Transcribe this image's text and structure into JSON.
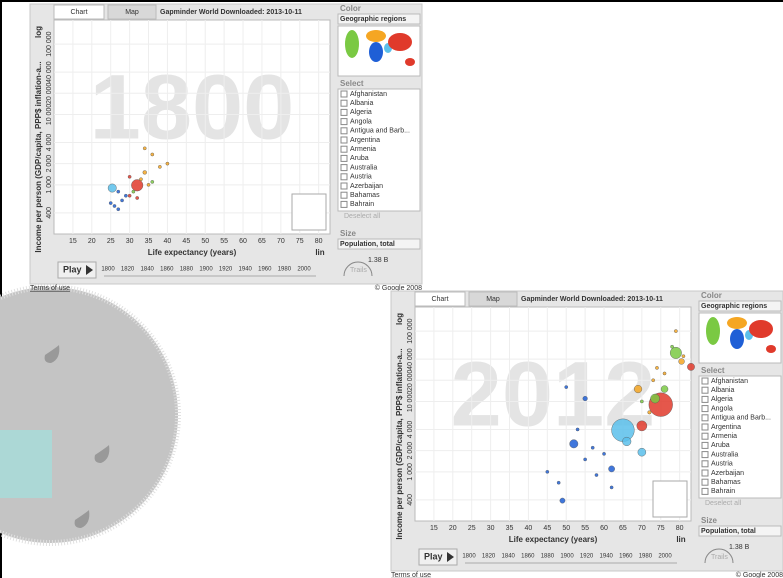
{
  "ui": {
    "tabs": [
      "Chart",
      "Map"
    ],
    "title": "Gapminder World Downloaded: 2013-10-11",
    "color_label": "Color",
    "color_choice": "Geographic regions",
    "select_label": "Select",
    "countries": [
      "Afghanistan",
      "Albania",
      "Algeria",
      "Angola",
      "Antigua and Barb...",
      "Argentina",
      "Armenia",
      "Aruba",
      "Australia",
      "Austria",
      "Azerbaijan",
      "Bahamas",
      "Bahrain"
    ],
    "deselect": "Deselect all",
    "size_label": "Size",
    "size_choice": "Population, total",
    "size_legend": "1.38 B",
    "play": "Play",
    "timeline": [
      "1800",
      "1820",
      "1840",
      "1860",
      "1880",
      "1900",
      "1920",
      "1940",
      "1960",
      "1980",
      "2000"
    ],
    "trails": "Trails",
    "y_scale": "log",
    "x_scale": "lin",
    "terms": "Terms of use",
    "copyright": "© Google 2008"
  },
  "chart_data": [
    {
      "type": "scatter",
      "year_watermark": "1800",
      "x_label": "Life expectancy (years)",
      "y_label": "Income per person (GDP/capita, PPP$ inflation-a...",
      "xlim": [
        10,
        83
      ],
      "ylim": [
        200,
        220000
      ],
      "log_y": true,
      "grid": true,
      "xticks": [
        15,
        20,
        25,
        30,
        35,
        40,
        45,
        50,
        55,
        60,
        65,
        70,
        75,
        80
      ],
      "yticks": [
        400,
        {
          "value": 1000,
          "label": "1 000"
        },
        {
          "value": 2000,
          "label": "2 000"
        },
        {
          "value": 4000,
          "label": "4 000"
        },
        {
          "value": 10000,
          "label": "10 000"
        },
        {
          "value": 20000,
          "label": "20 000"
        },
        {
          "value": 40000,
          "label": "40 000"
        },
        {
          "value": 100000,
          "label": "100 000"
        }
      ],
      "size_ref": 1380,
      "x": [
        32,
        25.4,
        34,
        36,
        30,
        28,
        26,
        27,
        25,
        29,
        35,
        38,
        33,
        31,
        36,
        30,
        40,
        34,
        32,
        27
      ],
      "values": [
        985,
        900,
        1500,
        2700,
        700,
        600,
        500,
        450,
        550,
        700,
        1000,
        1800,
        1200,
        800,
        1100,
        1300,
        2000,
        3300,
        650,
        800
      ],
      "sizes": [
        321,
        168,
        36,
        12,
        20,
        6,
        4,
        3,
        2,
        5,
        8,
        4,
        6,
        3,
        2,
        2,
        5,
        1,
        4,
        2
      ],
      "colors": [
        "#e03a2b",
        "#5bc0eb",
        "#f5a623",
        "#f5a623",
        "#e03a2b",
        "#1f5fd6",
        "#1f5fd6",
        "#1f5fd6",
        "#1f5fd6",
        "#1f5fd6",
        "#f5a623",
        "#f5a623",
        "#f5a623",
        "#7ac943",
        "#7ac943",
        "#e03a2b",
        "#f5a623",
        "#f5a623",
        "#e03a2b",
        "#1f5fd6"
      ]
    },
    {
      "type": "scatter",
      "year_watermark": "2012",
      "x_label": "Life expectancy (years)",
      "y_label": "Income per person (GDP/capita, PPP$ inflation-a...",
      "xlim": [
        10,
        83
      ],
      "ylim": [
        200,
        220000
      ],
      "log_y": true,
      "grid": true,
      "xticks": [
        15,
        20,
        25,
        30,
        35,
        40,
        45,
        50,
        55,
        60,
        65,
        70,
        75,
        80
      ],
      "yticks": [
        400,
        {
          "value": 1000,
          "label": "1 000"
        },
        {
          "value": 2000,
          "label": "2 000"
        },
        {
          "value": 4000,
          "label": "4 000"
        },
        {
          "value": 10000,
          "label": "10 000"
        },
        {
          "value": 20000,
          "label": "20 000"
        },
        {
          "value": 40000,
          "label": "40 000"
        },
        {
          "value": 100000,
          "label": "100 000"
        }
      ],
      "size_ref": 1380,
      "x": [
        75,
        65,
        79,
        70,
        73.5,
        66,
        52,
        70,
        69,
        83,
        76,
        62,
        80.5,
        49,
        55,
        79,
        48,
        55,
        58,
        60,
        45,
        53,
        57,
        62,
        50,
        73,
        76,
        72,
        70,
        74,
        81,
        78
      ],
      "values": [
        9000,
        3900,
        49000,
        4500,
        11000,
        2700,
        2500,
        1900,
        15000,
        31000,
        15000,
        1100,
        37000,
        390,
        11000,
        100000,
        700,
        1500,
        900,
        1800,
        1000,
        4000,
        2200,
        600,
        16000,
        20000,
        25000,
        7000,
        10000,
        30000,
        44000,
        60000
      ],
      "sizes": [
        1350,
        1240,
        314,
        247,
        199,
        179,
        169,
        155,
        143,
        127,
        117,
        92,
        82,
        66,
        52,
        2,
        10,
        15,
        20,
        8,
        5,
        3,
        12,
        9,
        1,
        10,
        6,
        30,
        8,
        5,
        8,
        5
      ],
      "colors": [
        "#e03a2b",
        "#5bc0eb",
        "#7ac943",
        "#e03a2b",
        "#7ac943",
        "#5bc0eb",
        "#1f5fd6",
        "#5bc0eb",
        "#f5a623",
        "#e03a2b",
        "#7ac943",
        "#1f5fd6",
        "#f5a623",
        "#1f5fd6",
        "#1f5fd6",
        "#f5a623",
        "#1f5fd6",
        "#1f5fd6",
        "#1f5fd6",
        "#1f5fd6",
        "#1f5fd6",
        "#1f5fd6",
        "#1f5fd6",
        "#1f5fd6",
        "#1f5fd6",
        "#f5a623",
        "#f5a623",
        "#f5a623",
        "#7ac943",
        "#f5a623",
        "#f5a623",
        "#7ac943"
      ]
    }
  ]
}
